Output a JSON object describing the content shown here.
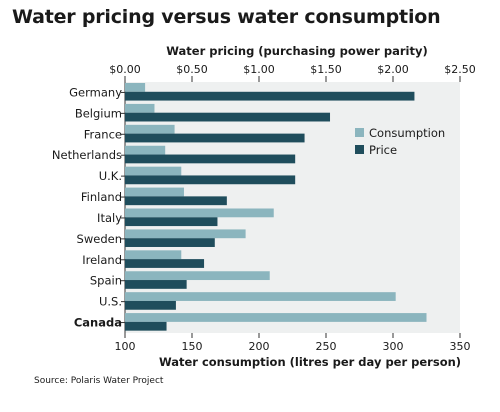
{
  "chart_data": {
    "type": "bar",
    "orientation": "horizontal",
    "title": "Water pricing versus water consumption",
    "categories": [
      "Germany",
      "Belgium",
      "France",
      "Netherlands",
      "U.K.",
      "Finland",
      "Italy",
      "Sweden",
      "Ireland",
      "Spain",
      "U.S.",
      "Canada"
    ],
    "highlighted_category": "Canada",
    "top_axis": {
      "label": "Water pricing (purchasing power parity)",
      "range": [
        0,
        2.5
      ],
      "ticks": [
        0,
        0.5,
        1.0,
        1.5,
        2.0,
        2.5
      ],
      "tick_labels": [
        "$0.00",
        "$0.50",
        "$1.00",
        "$1.50",
        "$2.00",
        "$2.50"
      ]
    },
    "bottom_axis": {
      "label": "Water consumption (litres per day per person)",
      "range": [
        100,
        350
      ],
      "ticks": [
        100,
        150,
        200,
        250,
        300,
        350
      ],
      "tick_labels": [
        "100",
        "150",
        "200",
        "250",
        "300",
        "350"
      ]
    },
    "series": [
      {
        "name": "Consumption",
        "axis": "bottom",
        "color": "#8bb5be",
        "values": [
          115,
          122,
          137,
          130,
          142,
          144,
          211,
          190,
          142,
          208,
          302,
          325
        ]
      },
      {
        "name": "Price",
        "axis": "top",
        "color": "#1f4d5c",
        "values": [
          2.16,
          1.53,
          1.34,
          1.27,
          1.27,
          0.76,
          0.69,
          0.67,
          0.59,
          0.46,
          0.38,
          0.31
        ]
      }
    ],
    "legend_position": "right",
    "grid": false
  },
  "source": "Source: Polaris Water Project"
}
